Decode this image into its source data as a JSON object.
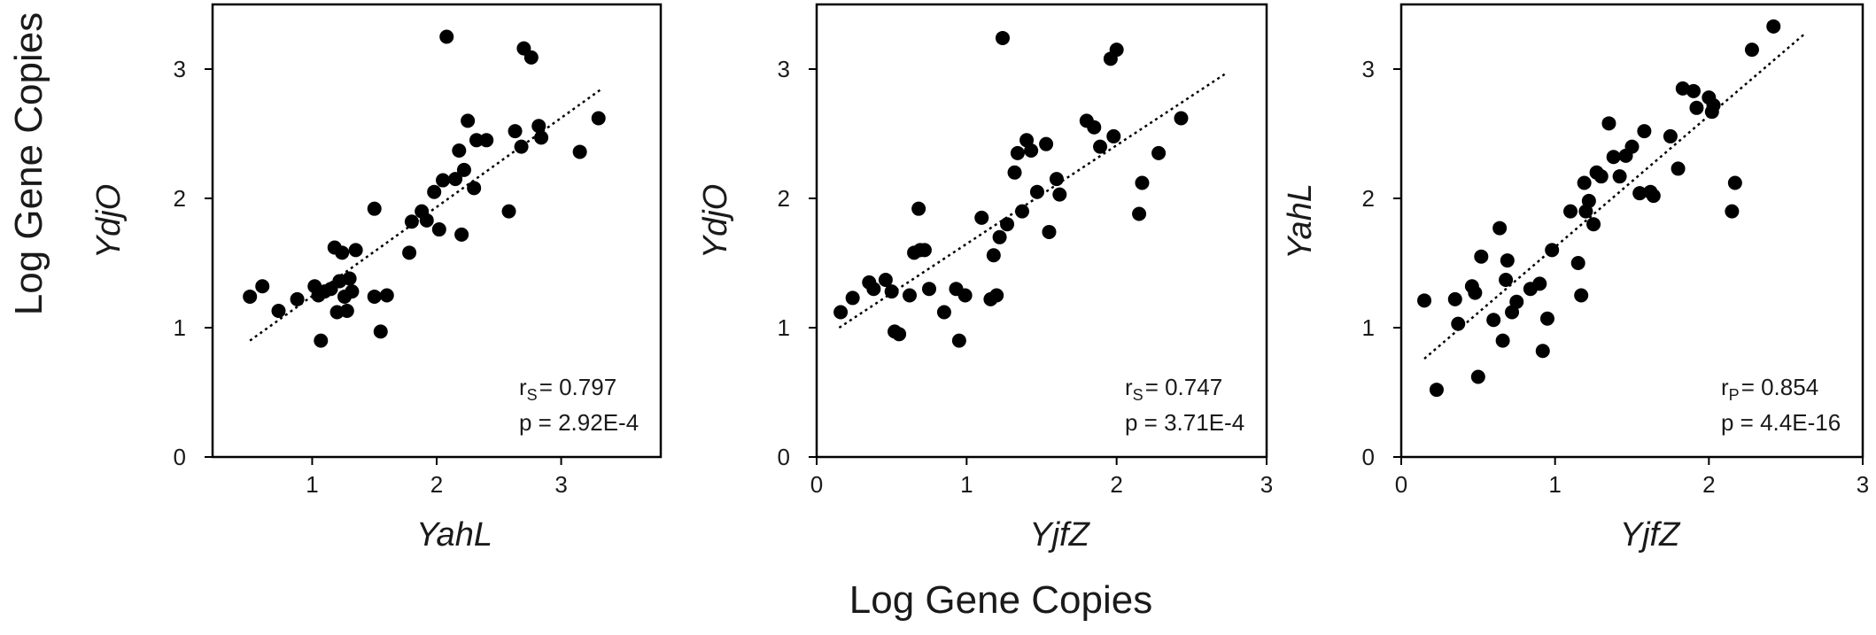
{
  "figure": {
    "global_ylabel": "Log Gene Copies",
    "global_xlabel": "Log Gene Copies"
  },
  "chart_data": [
    {
      "type": "scatter",
      "xlabel": "YahL",
      "ylabel": "YdjO",
      "xlim": [
        0.2,
        3.8
      ],
      "ylim": [
        0,
        3.5
      ],
      "xticks": [
        1,
        2,
        3
      ],
      "yticks": [
        0,
        1,
        2,
        3
      ],
      "xtick_labels": [
        "1",
        "2",
        "3"
      ],
      "ytick_labels": [
        "0",
        "1",
        "2",
        "3"
      ],
      "stat_label": "r",
      "stat_sub": "S",
      "stat_value": "= 0.797",
      "p_text": "p = 2.92E-4",
      "trendline": [
        [
          0.5,
          0.9
        ],
        [
          3.33,
          2.85
        ]
      ],
      "points": [
        [
          0.5,
          1.24
        ],
        [
          0.6,
          1.32
        ],
        [
          0.73,
          1.13
        ],
        [
          0.88,
          1.22
        ],
        [
          1.02,
          1.32
        ],
        [
          1.05,
          1.25
        ],
        [
          1.07,
          0.9
        ],
        [
          1.1,
          1.28
        ],
        [
          1.15,
          1.3
        ],
        [
          1.18,
          1.62
        ],
        [
          1.2,
          1.12
        ],
        [
          1.22,
          1.36
        ],
        [
          1.24,
          1.58
        ],
        [
          1.26,
          1.24
        ],
        [
          1.28,
          1.13
        ],
        [
          1.3,
          1.38
        ],
        [
          1.32,
          1.28
        ],
        [
          1.35,
          1.6
        ],
        [
          1.5,
          1.92
        ],
        [
          1.5,
          1.24
        ],
        [
          1.55,
          0.97
        ],
        [
          1.6,
          1.25
        ],
        [
          1.78,
          1.58
        ],
        [
          1.8,
          1.82
        ],
        [
          1.88,
          1.9
        ],
        [
          1.92,
          1.83
        ],
        [
          1.98,
          2.05
        ],
        [
          2.02,
          1.76
        ],
        [
          2.05,
          2.14
        ],
        [
          2.08,
          3.25
        ],
        [
          2.15,
          2.15
        ],
        [
          2.18,
          2.37
        ],
        [
          2.2,
          1.72
        ],
        [
          2.22,
          2.22
        ],
        [
          2.25,
          2.6
        ],
        [
          2.3,
          2.08
        ],
        [
          2.32,
          2.45
        ],
        [
          2.4,
          2.45
        ],
        [
          2.58,
          1.9
        ],
        [
          2.63,
          2.52
        ],
        [
          2.68,
          2.4
        ],
        [
          2.7,
          3.16
        ],
        [
          2.76,
          3.09
        ],
        [
          2.82,
          2.56
        ],
        [
          2.84,
          2.47
        ],
        [
          3.15,
          2.36
        ],
        [
          3.3,
          2.62
        ]
      ]
    },
    {
      "type": "scatter",
      "xlabel": "YjfZ",
      "ylabel": "YdjO",
      "xlim": [
        0,
        3
      ],
      "ylim": [
        0,
        3.5
      ],
      "xticks": [
        0,
        1,
        2,
        3
      ],
      "yticks": [
        0,
        1,
        2,
        3
      ],
      "xtick_labels": [
        "0",
        "1",
        "2",
        "3"
      ],
      "ytick_labels": [
        "0",
        "1",
        "2",
        "3"
      ],
      "stat_label": "r",
      "stat_sub": "S",
      "stat_value": "= 0.747",
      "p_text": "p = 3.71E-4",
      "trendline": [
        [
          0.15,
          1.0
        ],
        [
          2.72,
          2.96
        ]
      ],
      "points": [
        [
          0.16,
          1.12
        ],
        [
          0.24,
          1.23
        ],
        [
          0.35,
          1.35
        ],
        [
          0.38,
          1.3
        ],
        [
          0.46,
          1.37
        ],
        [
          0.5,
          1.28
        ],
        [
          0.52,
          0.97
        ],
        [
          0.55,
          0.95
        ],
        [
          0.62,
          1.25
        ],
        [
          0.65,
          1.58
        ],
        [
          0.68,
          1.92
        ],
        [
          0.69,
          1.6
        ],
        [
          0.72,
          1.6
        ],
        [
          0.75,
          1.3
        ],
        [
          0.85,
          1.12
        ],
        [
          0.93,
          1.3
        ],
        [
          0.95,
          0.9
        ],
        [
          0.99,
          1.25
        ],
        [
          1.1,
          1.85
        ],
        [
          1.16,
          1.22
        ],
        [
          1.18,
          1.56
        ],
        [
          1.2,
          1.25
        ],
        [
          1.22,
          1.7
        ],
        [
          1.24,
          3.24
        ],
        [
          1.27,
          1.8
        ],
        [
          1.32,
          2.2
        ],
        [
          1.34,
          2.35
        ],
        [
          1.37,
          1.9
        ],
        [
          1.4,
          2.45
        ],
        [
          1.43,
          2.37
        ],
        [
          1.47,
          2.05
        ],
        [
          1.53,
          2.42
        ],
        [
          1.55,
          1.74
        ],
        [
          1.6,
          2.15
        ],
        [
          1.62,
          2.03
        ],
        [
          1.8,
          2.6
        ],
        [
          1.85,
          2.55
        ],
        [
          1.89,
          2.4
        ],
        [
          1.96,
          3.08
        ],
        [
          1.98,
          2.48
        ],
        [
          2.0,
          3.15
        ],
        [
          2.15,
          1.88
        ],
        [
          2.17,
          2.12
        ],
        [
          2.28,
          2.35
        ],
        [
          2.43,
          2.62
        ]
      ]
    },
    {
      "type": "scatter",
      "xlabel": "YjfZ",
      "ylabel": "YahL",
      "xlim": [
        0,
        3
      ],
      "ylim": [
        0,
        3.5
      ],
      "xticks": [
        0,
        1,
        2,
        3
      ],
      "yticks": [
        0,
        1,
        2,
        3
      ],
      "xtick_labels": [
        "0",
        "1",
        "2",
        "3"
      ],
      "ytick_labels": [
        "0",
        "1",
        "2",
        "3"
      ],
      "stat_label": "r",
      "stat_sub": "P",
      "stat_value": "= 0.854",
      "p_text": "p = 4.4E-16",
      "trendline": [
        [
          0.15,
          0.76
        ],
        [
          2.62,
          3.27
        ]
      ],
      "points": [
        [
          0.15,
          1.21
        ],
        [
          0.23,
          0.52
        ],
        [
          0.35,
          1.22
        ],
        [
          0.37,
          1.03
        ],
        [
          0.46,
          1.32
        ],
        [
          0.48,
          1.27
        ],
        [
          0.5,
          0.62
        ],
        [
          0.52,
          1.55
        ],
        [
          0.6,
          1.06
        ],
        [
          0.64,
          1.77
        ],
        [
          0.66,
          0.9
        ],
        [
          0.68,
          1.37
        ],
        [
          0.69,
          1.52
        ],
        [
          0.72,
          1.12
        ],
        [
          0.75,
          1.2
        ],
        [
          0.84,
          1.3
        ],
        [
          0.9,
          1.34
        ],
        [
          0.92,
          0.82
        ],
        [
          0.95,
          1.07
        ],
        [
          0.98,
          1.6
        ],
        [
          1.1,
          1.9
        ],
        [
          1.15,
          1.5
        ],
        [
          1.17,
          1.25
        ],
        [
          1.19,
          2.12
        ],
        [
          1.2,
          1.9
        ],
        [
          1.22,
          1.98
        ],
        [
          1.25,
          1.8
        ],
        [
          1.27,
          2.2
        ],
        [
          1.3,
          2.17
        ],
        [
          1.35,
          2.58
        ],
        [
          1.38,
          2.32
        ],
        [
          1.42,
          2.17
        ],
        [
          1.46,
          2.33
        ],
        [
          1.5,
          2.4
        ],
        [
          1.55,
          2.04
        ],
        [
          1.58,
          2.52
        ],
        [
          1.62,
          2.05
        ],
        [
          1.64,
          2.02
        ],
        [
          1.75,
          2.48
        ],
        [
          1.8,
          2.23
        ],
        [
          1.83,
          2.85
        ],
        [
          1.9,
          2.83
        ],
        [
          1.92,
          2.7
        ],
        [
          2.0,
          2.78
        ],
        [
          2.02,
          2.67
        ],
        [
          2.15,
          1.9
        ],
        [
          2.17,
          2.12
        ],
        [
          2.28,
          3.15
        ],
        [
          2.42,
          3.33
        ],
        [
          2.03,
          2.72
        ]
      ]
    }
  ]
}
